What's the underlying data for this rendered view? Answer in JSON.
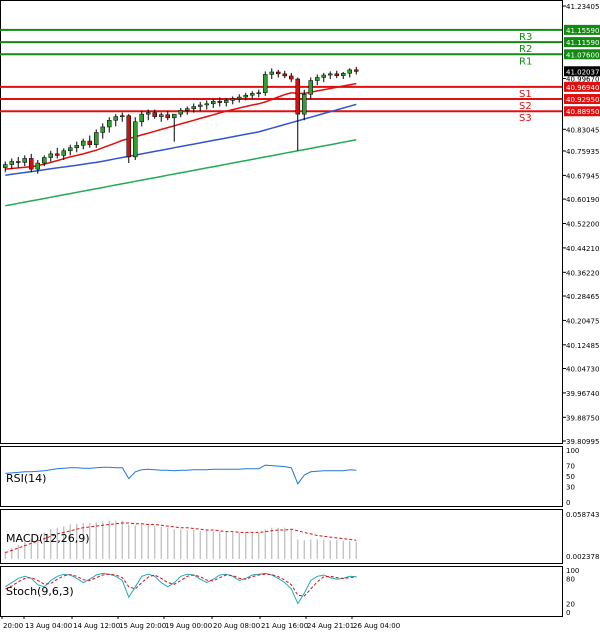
{
  "chart_data": {
    "type": "candlestick",
    "main": {
      "ylim": [
        39.80995,
        41.23405
      ],
      "y_ticks": [
        "41.23405",
        "41.15590",
        "41.11590",
        "41.07600",
        "41.02037",
        "40.99670",
        "40.96940",
        "40.92950",
        "40.88950",
        "40.83045",
        "40.75935",
        "40.67945",
        "40.60190",
        "40.52200",
        "40.44210",
        "40.36220",
        "40.28465",
        "40.20475",
        "40.12485",
        "40.04730",
        "39.96740",
        "39.88750",
        "39.80995"
      ],
      "last_price": "41.02037",
      "levels": [
        {
          "label": "R3",
          "value": 41.1559,
          "value_label": "41.15590",
          "color": "#128a12"
        },
        {
          "label": "R2",
          "value": 41.1159,
          "value_label": "41.11590",
          "color": "#128a12"
        },
        {
          "label": "R1",
          "value": 41.076,
          "value_label": "41.07600",
          "color": "#128a12"
        },
        {
          "label": "S1",
          "value": 40.9694,
          "value_label": "40.96940",
          "color": "#e01010"
        },
        {
          "label": "S2",
          "value": 40.9295,
          "value_label": "40.92950",
          "color": "#e01010"
        },
        {
          "label": "S3",
          "value": 40.8895,
          "value_label": "40.88950",
          "color": "#e01010"
        }
      ],
      "colors": {
        "up": "#2f9e2f",
        "down": "#cc1111",
        "ma_fast": "#e01010",
        "ma_mid": "#3355cc",
        "ma_slow": "#22aa55"
      },
      "candles": [
        [
          40.705,
          40.725,
          40.69,
          40.715
        ],
        [
          40.715,
          40.735,
          40.7,
          40.725
        ],
        [
          40.725,
          40.74,
          40.705,
          40.722
        ],
        [
          40.722,
          40.745,
          40.71,
          40.735
        ],
        [
          40.735,
          40.75,
          40.69,
          40.7
        ],
        [
          40.7,
          40.73,
          40.685,
          40.72
        ],
        [
          40.72,
          40.745,
          40.71,
          40.738
        ],
        [
          40.738,
          40.76,
          40.725,
          40.75
        ],
        [
          40.75,
          40.77,
          40.735,
          40.745
        ],
        [
          40.745,
          40.768,
          40.73,
          40.76
        ],
        [
          40.76,
          40.78,
          40.745,
          40.77
        ],
        [
          40.77,
          40.79,
          40.755,
          40.778
        ],
        [
          40.778,
          40.8,
          40.765,
          40.792
        ],
        [
          40.792,
          40.81,
          40.77,
          40.78
        ],
        [
          40.78,
          40.83,
          40.77,
          40.82
        ],
        [
          40.82,
          40.85,
          40.8,
          40.838
        ],
        [
          40.838,
          40.87,
          40.82,
          40.86
        ],
        [
          40.86,
          40.88,
          40.84,
          40.872
        ],
        [
          40.872,
          40.885,
          40.855,
          40.875
        ],
        [
          40.875,
          40.88,
          40.72,
          40.74
        ],
        [
          40.74,
          40.87,
          40.73,
          40.855
        ],
        [
          40.855,
          40.89,
          40.84,
          40.88
        ],
        [
          40.88,
          40.895,
          40.86,
          40.885
        ],
        [
          40.885,
          40.895,
          40.865,
          40.872
        ],
        [
          40.872,
          40.885,
          40.855,
          40.878
        ],
        [
          40.878,
          40.89,
          40.86,
          40.868
        ],
        [
          40.868,
          40.88,
          40.79,
          40.88
        ],
        [
          40.88,
          40.9,
          40.87,
          40.892
        ],
        [
          40.892,
          40.905,
          40.878,
          40.898
        ],
        [
          40.898,
          40.915,
          40.885,
          40.905
        ],
        [
          40.905,
          40.92,
          40.89,
          40.91
        ],
        [
          40.91,
          40.925,
          40.895,
          40.914
        ],
        [
          40.914,
          40.93,
          40.9,
          40.922
        ],
        [
          40.922,
          40.935,
          40.905,
          40.918
        ],
        [
          40.918,
          40.932,
          40.905,
          40.925
        ],
        [
          40.925,
          40.938,
          40.912,
          40.93
        ],
        [
          40.93,
          40.945,
          40.918,
          40.936
        ],
        [
          40.936,
          40.95,
          40.925,
          40.942
        ],
        [
          40.942,
          40.955,
          40.93,
          40.948
        ],
        [
          40.948,
          40.96,
          40.935,
          40.95
        ],
        [
          40.95,
          41.02,
          40.94,
          41.01
        ],
        [
          41.01,
          41.03,
          40.995,
          41.018
        ],
        [
          41.018,
          41.025,
          41.0,
          41.012
        ],
        [
          41.012,
          41.022,
          40.998,
          41.005
        ],
        [
          41.005,
          41.015,
          40.985,
          40.995
        ],
        [
          40.995,
          41.0,
          40.76,
          40.88
        ],
        [
          40.88,
          40.96,
          40.86,
          40.945
        ],
        [
          40.945,
          41.0,
          40.93,
          40.99
        ],
        [
          40.99,
          41.01,
          40.975,
          41.0
        ],
        [
          41.0,
          41.015,
          40.985,
          41.008
        ],
        [
          41.008,
          41.02,
          40.995,
          41.012
        ],
        [
          41.012,
          41.022,
          40.998,
          41.006
        ],
        [
          41.006,
          41.018,
          40.995,
          41.014
        ],
        [
          41.014,
          41.03,
          41.0,
          41.025
        ],
        [
          41.025,
          41.035,
          41.01,
          41.02
        ]
      ],
      "ma_fast": [
        40.7,
        40.702,
        40.704,
        40.706,
        40.708,
        40.712,
        40.716,
        40.722,
        40.728,
        40.734,
        40.74,
        40.745,
        40.75,
        40.756,
        40.762,
        40.77,
        40.778,
        40.786,
        40.794,
        40.8,
        40.806,
        40.812,
        40.818,
        40.824,
        40.83,
        40.836,
        40.842,
        40.848,
        40.854,
        40.86,
        40.866,
        40.872,
        40.878,
        40.884,
        40.89,
        40.895,
        40.9,
        40.905,
        40.91,
        40.914,
        40.92,
        40.928,
        40.936,
        40.944,
        40.95,
        40.948,
        40.948,
        40.952,
        40.956,
        40.96,
        40.964,
        40.968,
        40.972,
        40.976,
        40.98
      ],
      "ma_mid": [
        40.68,
        40.683,
        40.686,
        40.689,
        40.692,
        40.695,
        40.698,
        40.701,
        40.704,
        40.707,
        40.71,
        40.713,
        40.716,
        40.719,
        40.722,
        40.726,
        40.73,
        40.734,
        40.738,
        40.742,
        40.746,
        40.75,
        40.754,
        40.758,
        40.762,
        40.766,
        40.77,
        40.774,
        40.778,
        40.782,
        40.786,
        40.79,
        40.794,
        40.798,
        40.802,
        40.806,
        40.81,
        40.814,
        40.818,
        40.822,
        40.828,
        40.834,
        40.84,
        40.846,
        40.852,
        40.858,
        40.864,
        40.87,
        40.876,
        40.882,
        40.888,
        40.894,
        40.9,
        40.906,
        40.912
      ],
      "ma_slow": [
        40.58,
        40.584,
        40.588,
        40.592,
        40.596,
        40.6,
        40.604,
        40.608,
        40.612,
        40.616,
        40.62,
        40.624,
        40.628,
        40.632,
        40.636,
        40.64,
        40.644,
        40.648,
        40.652,
        40.656,
        40.66,
        40.664,
        40.668,
        40.672,
        40.676,
        40.68,
        40.684,
        40.688,
        40.692,
        40.696,
        40.7,
        40.704,
        40.708,
        40.712,
        40.716,
        40.72,
        40.724,
        40.728,
        40.732,
        40.736,
        40.74,
        40.744,
        40.748,
        40.752,
        40.756,
        40.76,
        40.764,
        40.768,
        40.772,
        40.776,
        40.78,
        40.784,
        40.788,
        40.792,
        40.796
      ]
    },
    "x_ticks": [
      "20:00",
      "13 Aug 04:00",
      "14 Aug 12:00",
      "15 Aug 20:00",
      "19 Aug 00:00",
      "20 Aug 08:00",
      "21 Aug 16:00",
      "24 Aug 21:01",
      "26 Aug 04:00"
    ],
    "rsi": {
      "label": "RSI(14)",
      "ticks": [
        "100",
        "70",
        "50",
        "30",
        "0"
      ],
      "color": "#2277dd",
      "values": [
        55,
        56,
        57,
        58,
        58,
        59,
        60,
        62,
        64,
        65,
        66,
        66,
        65,
        65,
        66,
        67,
        67,
        66,
        66,
        45,
        58,
        62,
        63,
        62,
        61,
        61,
        60,
        61,
        61,
        62,
        62,
        62,
        63,
        63,
        63,
        63,
        63,
        64,
        64,
        64,
        71,
        70,
        69,
        68,
        66,
        35,
        52,
        58,
        59,
        60,
        60,
        60,
        60,
        62,
        61
      ]
    },
    "macd": {
      "label": "MACD(12,26,9)",
      "ticks": [
        "0.058743",
        "0.002378"
      ],
      "hist_color": "#bbbbbb",
      "signal_color": "#dd1111",
      "hist": [
        0.01,
        0.014,
        0.018,
        0.022,
        0.026,
        0.03,
        0.034,
        0.038,
        0.04,
        0.042,
        0.044,
        0.045,
        0.046,
        0.046,
        0.047,
        0.048,
        0.049,
        0.049,
        0.049,
        0.044,
        0.043,
        0.044,
        0.043,
        0.042,
        0.041,
        0.04,
        0.038,
        0.038,
        0.037,
        0.037,
        0.036,
        0.036,
        0.035,
        0.035,
        0.034,
        0.034,
        0.034,
        0.034,
        0.033,
        0.033,
        0.038,
        0.04,
        0.04,
        0.04,
        0.039,
        0.025,
        0.024,
        0.025,
        0.025,
        0.025,
        0.024,
        0.024,
        0.023,
        0.023,
        0.022
      ],
      "signal": [
        0.008,
        0.011,
        0.014,
        0.017,
        0.02,
        0.023,
        0.026,
        0.029,
        0.032,
        0.034,
        0.036,
        0.038,
        0.04,
        0.041,
        0.042,
        0.043,
        0.044,
        0.045,
        0.046,
        0.046,
        0.045,
        0.045,
        0.044,
        0.044,
        0.043,
        0.042,
        0.041,
        0.04,
        0.04,
        0.039,
        0.038,
        0.037,
        0.037,
        0.036,
        0.035,
        0.035,
        0.034,
        0.034,
        0.034,
        0.034,
        0.035,
        0.036,
        0.037,
        0.037,
        0.038,
        0.036,
        0.034,
        0.032,
        0.03,
        0.029,
        0.028,
        0.027,
        0.026,
        0.025,
        0.024
      ]
    },
    "stoch": {
      "label": "Stoch(9,6,3)",
      "ticks": [
        "100",
        "80",
        "20",
        "0"
      ],
      "k_color": "#22aabb",
      "d_color": "#dd1111",
      "k": [
        60,
        70,
        80,
        85,
        80,
        65,
        60,
        75,
        85,
        90,
        88,
        80,
        70,
        78,
        88,
        92,
        90,
        85,
        75,
        35,
        60,
        85,
        90,
        85,
        70,
        60,
        70,
        85,
        90,
        88,
        78,
        70,
        78,
        88,
        90,
        85,
        75,
        80,
        88,
        90,
        92,
        88,
        80,
        70,
        55,
        20,
        45,
        75,
        85,
        88,
        82,
        78,
        80,
        85,
        84
      ],
      "d": [
        55,
        62,
        72,
        80,
        82,
        75,
        66,
        68,
        78,
        86,
        89,
        85,
        77,
        75,
        82,
        88,
        90,
        88,
        82,
        60,
        55,
        70,
        83,
        88,
        80,
        70,
        66,
        75,
        85,
        88,
        84,
        76,
        74,
        82,
        88,
        87,
        80,
        78,
        84,
        88,
        90,
        89,
        84,
        76,
        65,
        40,
        38,
        55,
        72,
        84,
        85,
        82,
        80,
        82,
        83
      ]
    }
  }
}
